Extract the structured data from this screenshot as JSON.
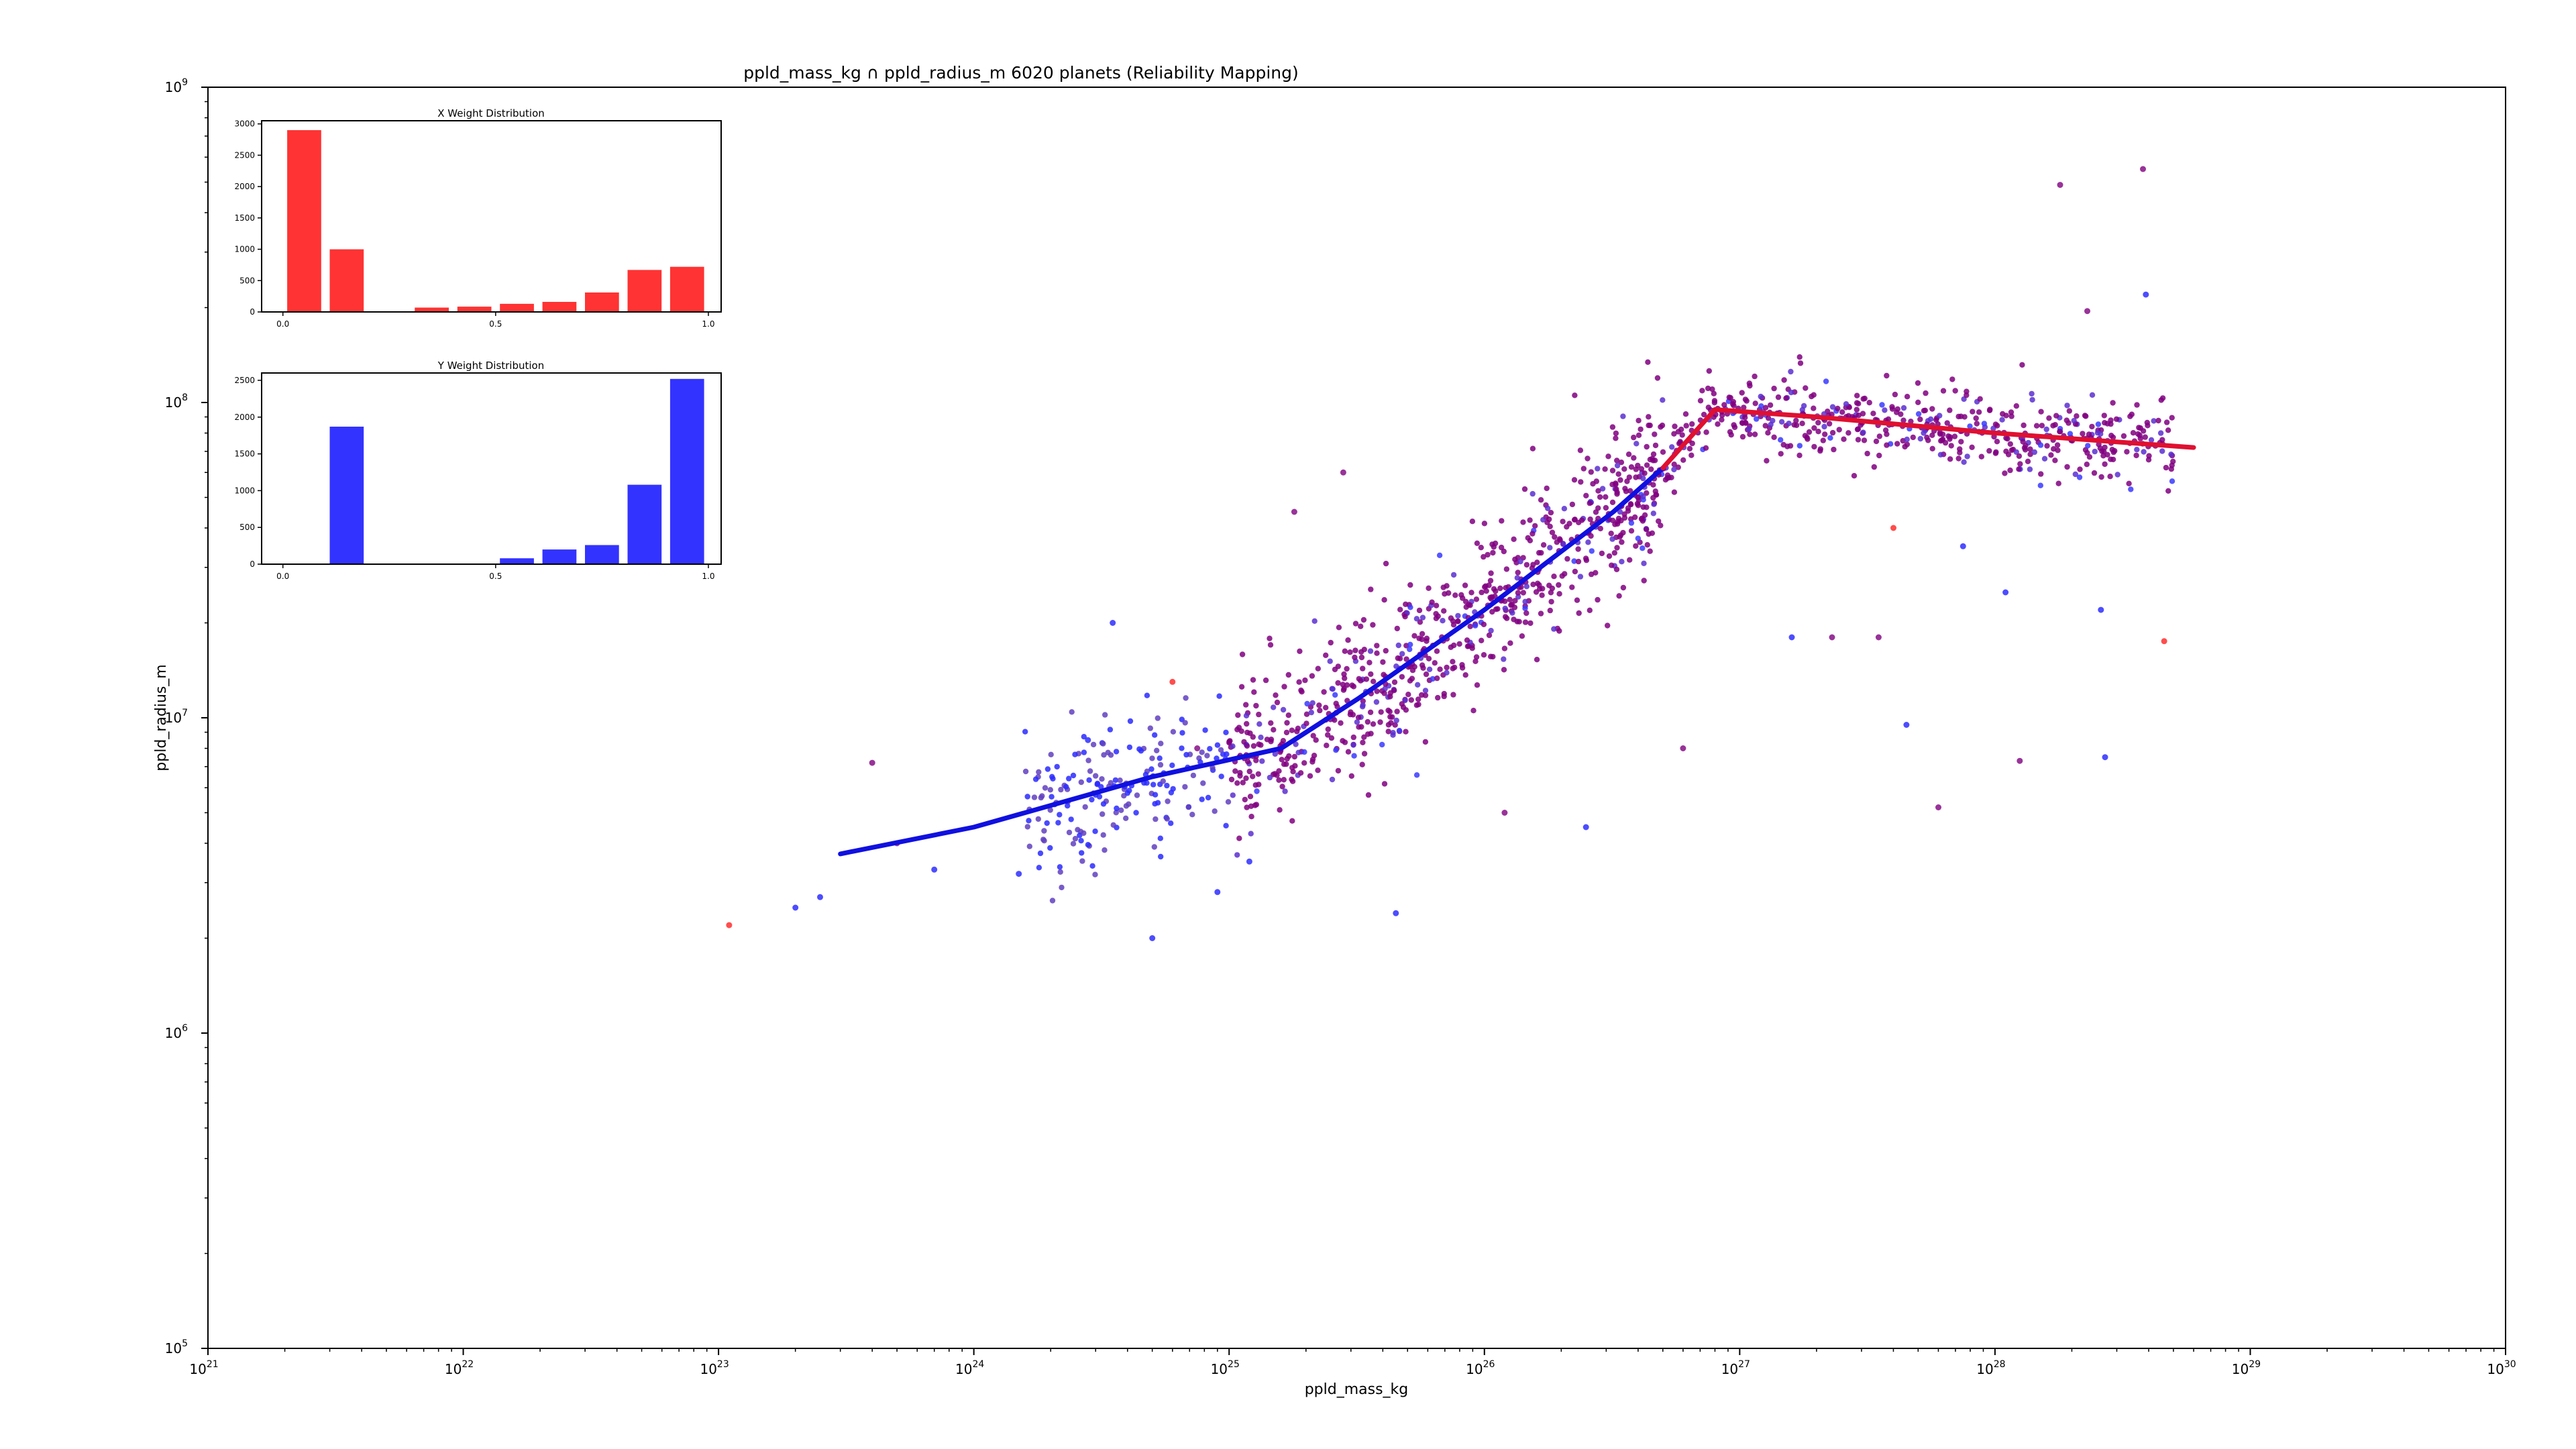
{
  "chart_data": [
    {
      "type": "scatter",
      "title": "ppld_mass_kg ∩ ppld_radius_m 6020 planets (Reliability Mapping)",
      "xlabel": "ppld_mass_kg",
      "ylabel": "ppld_radius_m",
      "xscale": "log",
      "yscale": "log",
      "xlim": [
        1e+21,
        1e+30
      ],
      "ylim": [
        100000.0,
        1000000000.0
      ],
      "x_tick_labels": [
        {
          "base": "10",
          "exp": "21"
        },
        {
          "base": "10",
          "exp": "22"
        },
        {
          "base": "10",
          "exp": "23"
        },
        {
          "base": "10",
          "exp": "24"
        },
        {
          "base": "10",
          "exp": "25"
        },
        {
          "base": "10",
          "exp": "26"
        },
        {
          "base": "10",
          "exp": "27"
        },
        {
          "base": "10",
          "exp": "28"
        },
        {
          "base": "10",
          "exp": "29"
        },
        {
          "base": "10",
          "exp": "30"
        }
      ],
      "y_tick_labels": [
        {
          "base": "10",
          "exp": "5"
        },
        {
          "base": "10",
          "exp": "6"
        },
        {
          "base": "10",
          "exp": "7"
        },
        {
          "base": "10",
          "exp": "8"
        },
        {
          "base": "10",
          "exp": "9"
        }
      ],
      "grid": false,
      "colors": {
        "low_reliability": "#ff0000",
        "mid_reliability": "#800080",
        "high_reliability": "#0000ff"
      },
      "fit_line": {
        "points": [
          [
            3e+23,
            3700000.0
          ],
          [
            1e+24,
            4500000.0
          ],
          [
            5e+24,
            6500000.0
          ],
          [
            1.6e+25,
            8000000.0
          ],
          [
            3.2e+25,
            11500000.0
          ],
          [
            1e+26,
            22000000.0
          ],
          [
            3.2e+26,
            45000000.0
          ],
          [
            5e+26,
            62000000.0
          ],
          [
            8e+26,
            95000000.0
          ],
          [
            2e+27,
            90000000.0
          ],
          [
            1e+28,
            80000000.0
          ],
          [
            6e+28,
            72000000.0
          ]
        ],
        "blue_until": 5e+26
      },
      "points": [
        {
          "x": 1.1e+23,
          "y": 2200000.0,
          "c": "red"
        },
        {
          "x": 2e+23,
          "y": 2500000.0,
          "c": "blue"
        },
        {
          "x": 2.5e+23,
          "y": 2700000.0,
          "c": "blue"
        },
        {
          "x": 4e+23,
          "y": 7200000.0,
          "c": "purple"
        },
        {
          "x": 5e+23,
          "y": 4000000.0,
          "c": "purple"
        },
        {
          "x": 7e+23,
          "y": 3300000.0,
          "c": "blue"
        },
        {
          "x": 1.5e+24,
          "y": 3200000.0,
          "c": "blue"
        },
        {
          "x": 3.5e+24,
          "y": 20000000.0,
          "c": "blue"
        },
        {
          "x": 2.8e+24,
          "y": 8500000.0,
          "c": "blue"
        },
        {
          "x": 6e+24,
          "y": 13000000.0,
          "c": "red"
        },
        {
          "x": 7.5e+24,
          "y": 8000000.0,
          "c": "purple"
        },
        {
          "x": 1.2e+25,
          "y": 3500000.0,
          "c": "blue"
        },
        {
          "x": 5e+24,
          "y": 2000000.0,
          "c": "blue"
        },
        {
          "x": 9e+24,
          "y": 2800000.0,
          "c": "blue"
        },
        {
          "x": 1.8e+25,
          "y": 45000000.0,
          "c": "purple"
        },
        {
          "x": 2.8e+25,
          "y": 60000000.0,
          "c": "purple"
        },
        {
          "x": 4.5e+25,
          "y": 2400000.0,
          "c": "blue"
        },
        {
          "x": 1.2e+26,
          "y": 5000000.0,
          "c": "purple"
        },
        {
          "x": 2.5e+26,
          "y": 4500000.0,
          "c": "blue"
        },
        {
          "x": 6e+26,
          "y": 8000000.0,
          "c": "purple"
        },
        {
          "x": 1.6e+27,
          "y": 18000000.0,
          "c": "blue"
        },
        {
          "x": 2.3e+27,
          "y": 18000000.0,
          "c": "purple"
        },
        {
          "x": 3.5e+27,
          "y": 18000000.0,
          "c": "purple"
        },
        {
          "x": 4e+27,
          "y": 40000000.0,
          "c": "red"
        },
        {
          "x": 4.5e+27,
          "y": 9500000.0,
          "c": "blue"
        },
        {
          "x": 6e+27,
          "y": 5200000.0,
          "c": "purple"
        },
        {
          "x": 7.5e+27,
          "y": 35000000.0,
          "c": "blue"
        },
        {
          "x": 1.1e+28,
          "y": 25000000.0,
          "c": "blue"
        },
        {
          "x": 1.25e+28,
          "y": 7300000.0,
          "c": "purple"
        },
        {
          "x": 1.8e+28,
          "y": 490000000.0,
          "c": "purple"
        },
        {
          "x": 2.3e+28,
          "y": 195000000.0,
          "c": "purple"
        },
        {
          "x": 2.7e+28,
          "y": 7500000.0,
          "c": "blue"
        },
        {
          "x": 3.8e+28,
          "y": 550000000.0,
          "c": "purple"
        },
        {
          "x": 3.9e+28,
          "y": 220000000.0,
          "c": "blue"
        },
        {
          "x": 4.6e+28,
          "y": 17500000.0,
          "c": "red"
        },
        {
          "x": 2.6e+28,
          "y": 22000000.0,
          "c": "blue"
        }
      ],
      "cloud": {
        "count": 1500,
        "seed": 20,
        "description_x": [
          8e+24,
          5.7e+28
        ],
        "y_range": [
          6000000.0,
          150000000.0
        ]
      }
    },
    {
      "type": "bar",
      "title": "X Weight Distribution",
      "color": "#ff0000",
      "categories": [
        0.05,
        0.15,
        0.35,
        0.45,
        0.55,
        0.65,
        0.75,
        0.85,
        0.95
      ],
      "values": [
        2900,
        1000,
        70,
        85,
        130,
        160,
        310,
        670,
        720
      ],
      "x_tick_labels": [
        "0.0",
        "0.5",
        "1.0"
      ],
      "y_tick_labels": [
        "0",
        "500",
        "1000",
        "1500",
        "2000",
        "2500",
        "3000"
      ],
      "xlim": [
        -0.05,
        1.03
      ],
      "ylim": [
        0,
        3050
      ]
    },
    {
      "type": "bar",
      "title": "Y Weight Distribution",
      "color": "#0000ff",
      "categories": [
        0.15,
        0.55,
        0.65,
        0.75,
        0.85,
        0.95
      ],
      "values": [
        1870,
        80,
        200,
        260,
        1080,
        2520
      ],
      "x_tick_labels": [
        "0.0",
        "0.5",
        "1.0"
      ],
      "y_tick_labels": [
        "0",
        "500",
        "1000",
        "1500",
        "2000",
        "2500"
      ],
      "xlim": [
        -0.05,
        1.03
      ],
      "ylim": [
        0,
        2600
      ]
    }
  ]
}
